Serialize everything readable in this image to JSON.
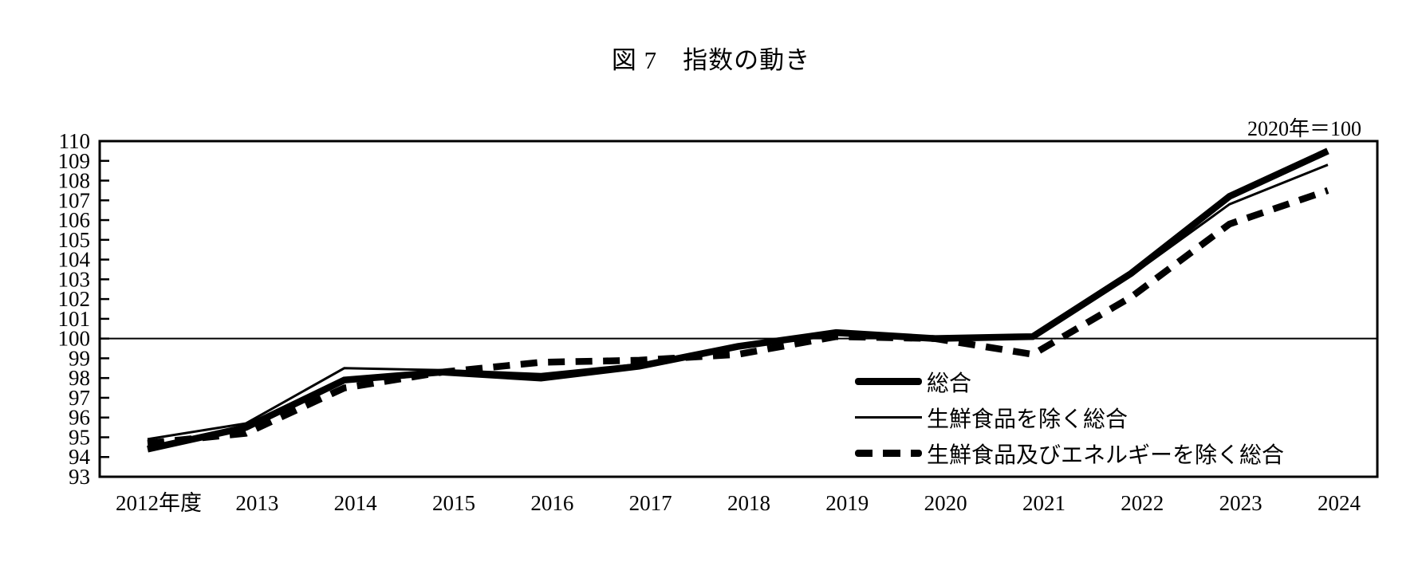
{
  "page": {
    "title": "図 7　指数の動き",
    "note": "2020年＝100"
  },
  "legend": {
    "items": [
      {
        "id": "all-items",
        "label": "総合",
        "style": "thick-solid"
      },
      {
        "id": "all-items-less-fresh-food",
        "label": "生鮮食品を除く総合",
        "style": "thin-solid"
      },
      {
        "id": "all-items-less-fresh-food-and-energy",
        "label": "生鮮食品及びエネルギーを除く総合",
        "style": "thick-dashed"
      }
    ]
  },
  "chart_data": {
    "type": "line",
    "title": "図 7　指数の動き",
    "note": "2020年＝100",
    "x_categories": [
      "2012年度",
      "2013",
      "2014",
      "2015",
      "2016",
      "2017",
      "2018",
      "2019",
      "2020",
      "2021",
      "2022",
      "2023",
      "2024"
    ],
    "series": [
      {
        "name": "総合",
        "id": "all-items",
        "style": "thick-solid",
        "values": [
          94.4,
          95.5,
          97.9,
          98.3,
          98.0,
          98.6,
          99.6,
          100.3,
          100.0,
          100.1,
          103.3,
          107.2,
          109.5
        ]
      },
      {
        "name": "生鮮食品を除く総合",
        "id": "all-items-less-fresh-food",
        "style": "thin-solid",
        "values": [
          94.9,
          95.7,
          98.5,
          98.4,
          98.2,
          98.7,
          99.7,
          100.2,
          100.0,
          100.0,
          103.2,
          106.8,
          108.8
        ]
      },
      {
        "name": "生鮮食品及びエネルギーを除く総合",
        "id": "all-items-less-fresh-food-and-energy",
        "style": "thick-dashed",
        "values": [
          94.7,
          95.2,
          97.5,
          98.3,
          98.8,
          98.9,
          99.2,
          100.1,
          100.0,
          99.2,
          102.1,
          105.8,
          107.5
        ]
      }
    ],
    "ylim": [
      93,
      110
    ],
    "ytick_step": 1,
    "reference_line": 100,
    "grid": false,
    "legend_position": "inside-lower-right"
  },
  "colors": {
    "line": "#000000",
    "text": "#000000",
    "background": "#ffffff"
  }
}
